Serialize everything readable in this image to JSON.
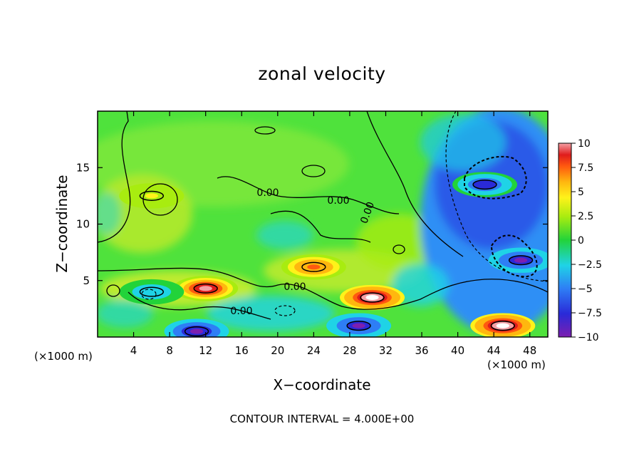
{
  "chart_data": {
    "type": "heatmap",
    "title": "zonal velocity",
    "xlabel": "X−coordinate",
    "ylabel": "Z−coordinate",
    "x_unit_left": "(×1000 m)",
    "x_unit_right": "(×1000 m)",
    "xlim": [
      0,
      50
    ],
    "ylim": [
      0,
      20
    ],
    "x_ticks": [
      4,
      8,
      12,
      16,
      20,
      24,
      28,
      32,
      36,
      40,
      44,
      48
    ],
    "x_tick_labels": [
      "4",
      "8",
      "12",
      "16",
      "20",
      "24",
      "28",
      "32",
      "36",
      "40",
      "44",
      "48"
    ],
    "y_ticks": [
      5,
      10,
      15
    ],
    "y_tick_labels": [
      "5",
      "10",
      "15"
    ],
    "colorbar": {
      "min": -10,
      "max": 10,
      "ticks": [
        10,
        7.5,
        5,
        2.5,
        0,
        -2.5,
        -5,
        -7.5,
        -10
      ],
      "tick_labels": [
        "10",
        "7.5",
        "5",
        "2.5",
        "0",
        "−2.5",
        "−5",
        "−7.5",
        "−10"
      ]
    },
    "contour_labels": [
      "0.00",
      "0.00",
      "0.00",
      "0.00",
      "0.00"
    ],
    "footer": "CONTOUR INTERVAL = 4.000E+00",
    "features": [
      {
        "x": 6,
        "z": 12.5,
        "value": 4
      },
      {
        "x": 12,
        "z": 4.3,
        "value": 9
      },
      {
        "x": 24,
        "z": 6.2,
        "value": 7
      },
      {
        "x": 30.5,
        "z": 3.5,
        "value": 11
      },
      {
        "x": 45,
        "z": 1,
        "value": 11
      },
      {
        "x": 43,
        "z": 13.5,
        "value": -9
      },
      {
        "x": 47,
        "z": 6.8,
        "value": -10
      },
      {
        "x": 11,
        "z": 0.5,
        "value": -11
      },
      {
        "x": 29,
        "z": 1,
        "value": -10
      },
      {
        "x": 6,
        "z": 4,
        "value": -4
      }
    ]
  }
}
